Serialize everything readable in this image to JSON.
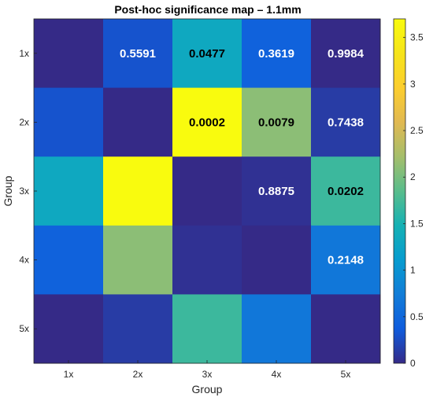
{
  "chart_data": {
    "type": "heatmap",
    "title": "Post-hoc significance map – 1.1mm",
    "xlabel": "Group",
    "ylabel": "Group",
    "x_categories": [
      "1x",
      "2x",
      "3x",
      "4x",
      "5x"
    ],
    "y_categories": [
      "1x",
      "2x",
      "3x",
      "4x",
      "5x"
    ],
    "values": [
      [
        0.0,
        0.3,
        1.32,
        0.44,
        0.0
      ],
      [
        0.3,
        0.0,
        3.7,
        2.1,
        0.13
      ],
      [
        1.32,
        3.7,
        0.0,
        0.05,
        1.69
      ],
      [
        0.44,
        2.1,
        0.05,
        0.0,
        0.67
      ],
      [
        0.0,
        0.13,
        1.69,
        0.67,
        0.0
      ]
    ],
    "cell_labels": [
      [
        "",
        "0.5591",
        "0.0477",
        "0.3619",
        "0.9984"
      ],
      [
        "",
        "",
        "0.0002",
        "0.0079",
        "0.7438"
      ],
      [
        "",
        "",
        "",
        "0.8875",
        "0.0202"
      ],
      [
        "",
        "",
        "",
        "",
        "0.2148"
      ],
      [
        "",
        "",
        "",
        "",
        ""
      ]
    ],
    "cell_label_colors": [
      [
        "",
        "#ffffff",
        "#000000",
        "#ffffff",
        "#ffffff"
      ],
      [
        "",
        "",
        "#000000",
        "#000000",
        "#ffffff"
      ],
      [
        "",
        "",
        "",
        "#ffffff",
        "#000000"
      ],
      [
        "",
        "",
        "",
        "",
        "#ffffff"
      ],
      [
        "",
        "",
        "",
        "",
        ""
      ]
    ],
    "colormap": "parula",
    "clim": [
      0,
      3.7
    ],
    "colorbar": {
      "position": "right",
      "ticks": [
        0,
        0.5,
        1,
        1.5,
        2,
        2.5,
        3,
        3.5
      ],
      "tick_labels": [
        "0",
        "0.5",
        "1",
        "1.5",
        "2",
        "2.5",
        "3",
        "3.5"
      ]
    }
  }
}
